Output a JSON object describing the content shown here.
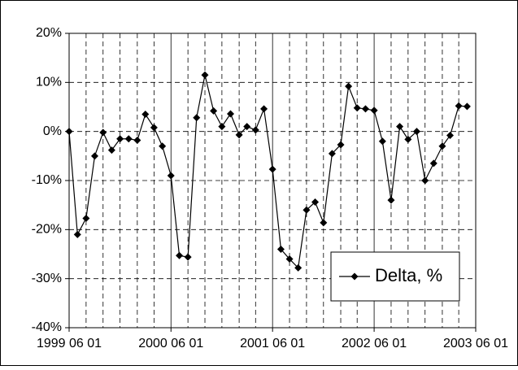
{
  "chart_data": {
    "type": "line",
    "x": [
      "1999-06-01",
      "1999-07-01",
      "1999-08-01",
      "1999-09-01",
      "1999-10-01",
      "1999-11-01",
      "1999-12-01",
      "2000-01-01",
      "2000-02-01",
      "2000-03-01",
      "2000-04-01",
      "2000-05-01",
      "2000-06-01",
      "2000-07-01",
      "2000-08-01",
      "2000-09-01",
      "2000-10-01",
      "2000-11-01",
      "2000-12-01",
      "2001-01-01",
      "2001-02-01",
      "2001-03-01",
      "2001-04-01",
      "2001-05-01",
      "2001-06-01",
      "2001-07-01",
      "2001-08-01",
      "2001-09-01",
      "2001-10-01",
      "2001-11-01",
      "2001-12-01",
      "2002-01-01",
      "2002-02-01",
      "2002-03-01",
      "2002-04-01",
      "2002-05-01",
      "2002-06-01",
      "2002-07-01",
      "2002-08-01",
      "2002-09-01",
      "2002-10-01",
      "2002-11-01",
      "2002-12-01",
      "2003-01-01",
      "2003-02-01",
      "2003-03-01",
      "2003-04-01",
      "2003-05-01"
    ],
    "series": [
      {
        "name": "Delta, %",
        "color": "#000000",
        "values": [
          0,
          -21,
          -17.7,
          -5,
          -0.2,
          -3.8,
          -1.5,
          -1.5,
          -1.8,
          3.5,
          0.8,
          -3,
          -9,
          -25.3,
          -25.6,
          2.8,
          11.5,
          4.2,
          1,
          3.6,
          -0.7,
          1,
          0.3,
          4.6,
          -7.7,
          -24,
          -26,
          -27.8,
          -16,
          -14.4,
          -18.6,
          -4.5,
          -2.7,
          9.2,
          4.8,
          4.6,
          4.3,
          -2,
          -14,
          1,
          -1.6,
          0,
          -10,
          -6.5,
          -3,
          -0.8,
          5.2,
          5.1
        ]
      }
    ],
    "xlim": [
      "1999-06-01",
      "2003-06-01"
    ],
    "xticks": [
      {
        "value": "1999-06-01",
        "label": "1999 06 01"
      },
      {
        "value": "2000-06-01",
        "label": "2000 06 01"
      },
      {
        "value": "2001-06-01",
        "label": "2001 06 01"
      },
      {
        "value": "2002-06-01",
        "label": "2002 06 01"
      },
      {
        "value": "2003-06-01",
        "label": "2003 06 01"
      }
    ],
    "x_minor_ticks": [
      "1999-08-01",
      "1999-10-01",
      "1999-12-01",
      "2000-02-01",
      "2000-04-01",
      "2000-08-01",
      "2000-10-01",
      "2000-12-01",
      "2001-02-01",
      "2001-04-01",
      "2001-08-01",
      "2001-10-01",
      "2001-12-01",
      "2002-02-01",
      "2002-04-01",
      "2002-08-01",
      "2002-10-01",
      "2002-12-01",
      "2003-02-01",
      "2003-04-01"
    ],
    "ylim": [
      -40,
      20
    ],
    "yticks": [
      {
        "value": -40,
        "label": "-40%"
      },
      {
        "value": -30,
        "label": "-30%"
      },
      {
        "value": -20,
        "label": "-20%"
      },
      {
        "value": -10,
        "label": "-10%"
      },
      {
        "value": 0,
        "label": "0%"
      },
      {
        "value": 10,
        "label": "10%"
      },
      {
        "value": 20,
        "label": "20%"
      }
    ],
    "grid": true,
    "legend": "lower right"
  }
}
